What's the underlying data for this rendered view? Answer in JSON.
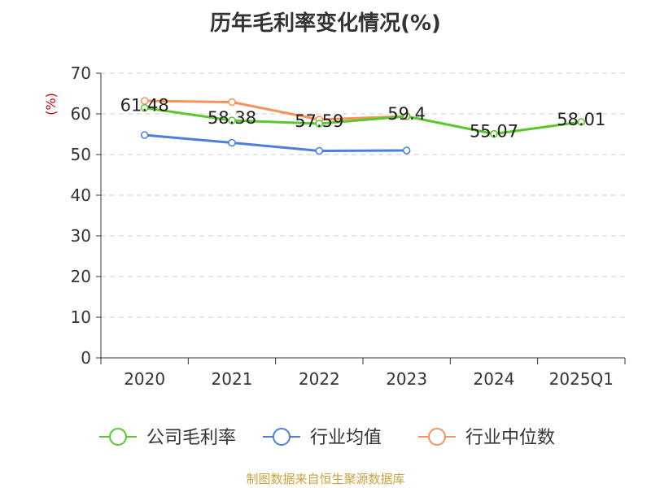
{
  "chart_data": {
    "type": "line",
    "title": "历年毛利率变化情况(%)",
    "ylabel": "(%)",
    "categories": [
      "2020",
      "2021",
      "2022",
      "2023",
      "2024",
      "2025Q1"
    ],
    "ylim": [
      0,
      70
    ],
    "yticks": [
      0,
      10,
      20,
      30,
      40,
      50,
      60,
      70
    ],
    "grid": true,
    "legend_position": "bottom",
    "series": [
      {
        "name": "公司毛利率",
        "color": "#5cc62e",
        "values": [
          61.48,
          58.38,
          57.59,
          59.4,
          55.07,
          58.01
        ],
        "labels": [
          "61.48",
          "58.38",
          "57.59",
          "59.4",
          "55.07",
          "58.01"
        ]
      },
      {
        "name": "行业均值",
        "color": "#4a7fdc",
        "values": [
          54.8,
          52.9,
          50.9,
          51.0,
          null,
          null
        ]
      },
      {
        "name": "行业中位数",
        "color": "#f4935a",
        "values": [
          63.2,
          62.9,
          58.6,
          59.4,
          null,
          null
        ]
      }
    ]
  },
  "source": "制图数据来自恒生聚源数据库"
}
